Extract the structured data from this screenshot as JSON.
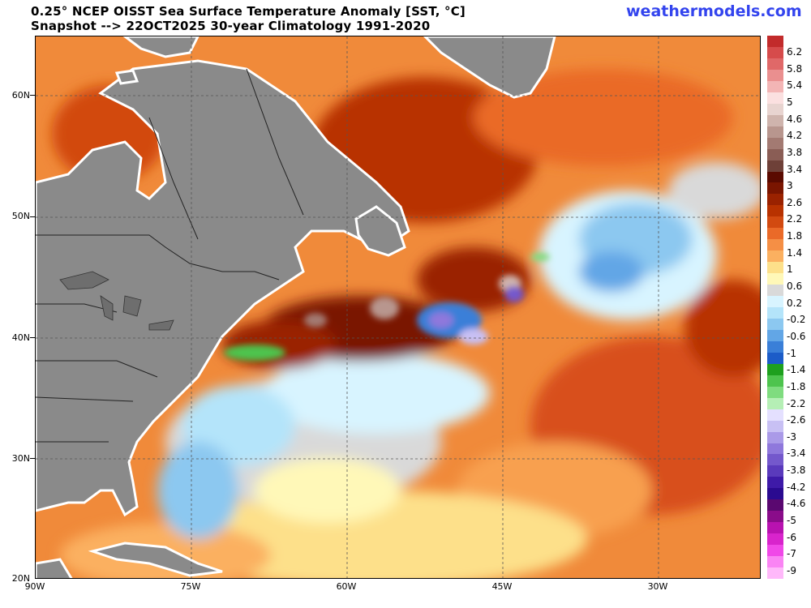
{
  "header": {
    "title_line1": "0.25° NCEP OISST Sea Surface Temperature Anomaly [SST, °C]",
    "title_line2": "Snapshot --> 22OCT2025  30-year Climatology 1991-2020",
    "brand": "weathermodels.com"
  },
  "map": {
    "lat_labels": [
      "60N",
      "50N",
      "40N",
      "30N",
      "20N"
    ],
    "lon_labels": [
      "90W",
      "75W",
      "60W",
      "45W",
      "30W"
    ],
    "land_color": "#8a8a8a",
    "border_color": "#222222"
  },
  "colorbar": {
    "labels": [
      "6.2",
      "5.8",
      "5.4",
      "5",
      "4.6",
      "4.2",
      "3.8",
      "3.4",
      "3",
      "2.6",
      "2.2",
      "1.8",
      "1.4",
      "1",
      "0.6",
      "0.2",
      "-0.2",
      "-0.6",
      "-1",
      "-1.4",
      "-1.8",
      "-2.2",
      "-2.6",
      "-3",
      "-3.4",
      "-3.8",
      "-4.2",
      "-4.6",
      "-5",
      "-6",
      "-7",
      "-9"
    ],
    "colors": [
      "#c22b2b",
      "#d64b4b",
      "#e06868",
      "#ea8f8f",
      "#f3b5b5",
      "#fbe0e0",
      "#e8d4d0",
      "#cfb4ad",
      "#b8968e",
      "#a37a72",
      "#8a5d55",
      "#6e4038",
      "#5a0a00",
      "#7a1500",
      "#9a2200",
      "#b83200",
      "#d24a10",
      "#ea6a28",
      "#f58f45",
      "#fbb060",
      "#fde08a",
      "#fff8b8",
      "#d9d9d9",
      "#d8f4ff",
      "#b4e4fa",
      "#8cc8f0",
      "#62a6e6",
      "#3a7fd8",
      "#1c5cc8",
      "#1ea01e",
      "#4ec44e",
      "#7fdc7f",
      "#b5efb5",
      "#e4e0ff",
      "#c8c0f4",
      "#aa9ae8",
      "#8f78dc",
      "#7458cc",
      "#5a3abc",
      "#3e1aa8",
      "#2a0a90",
      "#5a0870",
      "#8a0c8a",
      "#b812b0",
      "#d824cc",
      "#f048e8",
      "#fa84f4",
      "#ffb8fa"
    ]
  }
}
